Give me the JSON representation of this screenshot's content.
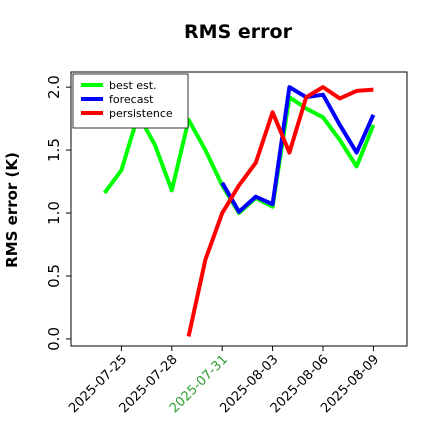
{
  "chart_data": {
    "type": "line",
    "title": "RMS error",
    "ylabel": "RMS error (K)",
    "x": [
      "2025-07-24",
      "2025-07-25",
      "2025-07-26",
      "2025-07-27",
      "2025-07-28",
      "2025-07-29",
      "2025-07-30",
      "2025-07-31",
      "2025-08-01",
      "2025-08-02",
      "2025-08-03",
      "2025-08-04",
      "2025-08-05",
      "2025-08-06",
      "2025-08-07",
      "2025-08-08",
      "2025-08-09"
    ],
    "series": [
      {
        "name": "best est.",
        "color": "#00ff00",
        "values": [
          1.16,
          1.34,
          1.78,
          1.54,
          1.18,
          1.74,
          1.5,
          1.22,
          1.0,
          1.12,
          1.05,
          1.92,
          1.83,
          1.76,
          1.58,
          1.37,
          1.7
        ]
      },
      {
        "name": "forecast",
        "color": "#0000ff",
        "values": [
          null,
          null,
          null,
          null,
          null,
          null,
          null,
          1.24,
          1.01,
          1.13,
          1.07,
          2.0,
          1.92,
          1.94,
          1.7,
          1.48,
          1.78
        ]
      },
      {
        "name": "persistence",
        "color": "#ff0000",
        "values": [
          null,
          null,
          null,
          null,
          null,
          0.02,
          0.63,
          1.0,
          1.22,
          1.4,
          1.8,
          1.48,
          1.92,
          2.0,
          1.91,
          1.97,
          1.98
        ]
      }
    ],
    "xlim": [
      "2025-07-22",
      "2025-08-11"
    ],
    "xticks": [
      "2025-07-25",
      "2025-07-28",
      "2025-07-31",
      "2025-08-03",
      "2025-08-06",
      "2025-08-09"
    ],
    "ylim": [
      -0.056,
      2.12
    ],
    "yticks": [
      {
        "value": 0,
        "label": "0.0"
      },
      {
        "value": 0.5,
        "label": "0.5"
      },
      {
        "value": 1,
        "label": "1.0"
      },
      {
        "value": 1.5,
        "label": "1.5"
      },
      {
        "value": 2,
        "label": "2.0"
      }
    ],
    "legend": "upper-left",
    "highlight": {
      "tick": "2025-07-31",
      "color": "#2e9e2e"
    }
  }
}
